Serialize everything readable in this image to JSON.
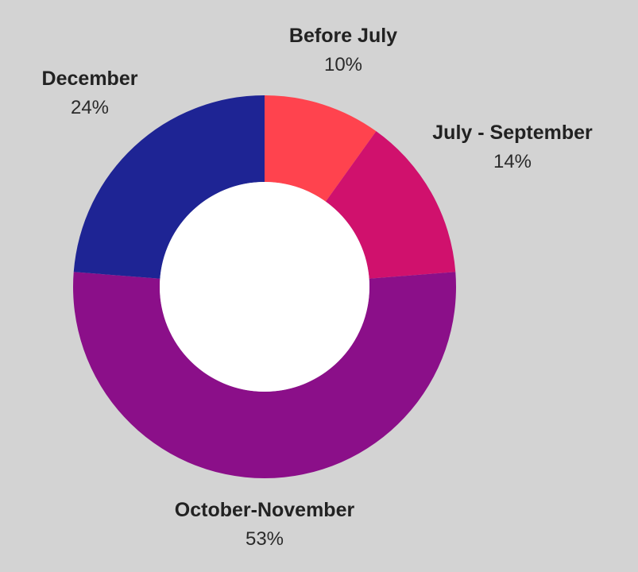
{
  "chart_data": {
    "type": "pie",
    "donut": true,
    "slices": [
      {
        "label": "Before July",
        "value": 10,
        "value_label": "10%",
        "color": "#ff434e"
      },
      {
        "label": "July - September",
        "value": 14,
        "value_label": "14%",
        "color": "#d0116d"
      },
      {
        "label": "October-November",
        "value": 53,
        "value_label": "53%",
        "color": "#8b0f89"
      },
      {
        "label": "December",
        "value": 24,
        "value_label": "24%",
        "color": "#1e2494"
      }
    ],
    "background": "#d3d3d3",
    "hole_color": "#ffffff"
  }
}
